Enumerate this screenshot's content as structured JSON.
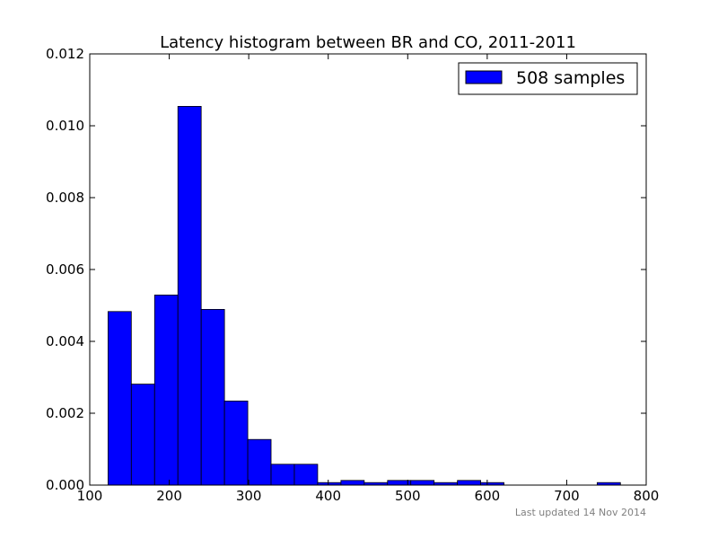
{
  "chart_data": {
    "type": "bar",
    "title": "Latency histogram between BR and CO, 2011-2011",
    "xlabel": "",
    "ylabel": "",
    "xlim": [
      100,
      800
    ],
    "ylim": [
      0,
      0.012
    ],
    "x_ticks": [
      "100",
      "200",
      "300",
      "400",
      "500",
      "600",
      "700",
      "800"
    ],
    "y_ticks": [
      "0.000",
      "0.002",
      "0.004",
      "0.006",
      "0.008",
      "0.010",
      "0.012"
    ],
    "grid": false,
    "legend_position": "top-right",
    "bar_color": "#0000ff",
    "bar_edge_color": "#000000",
    "series": [
      {
        "name": "508 samples",
        "bins": [
          {
            "start": 123,
            "end": 152.3,
            "value": 0.00483
          },
          {
            "start": 152.3,
            "end": 181.6,
            "value": 0.00281
          },
          {
            "start": 181.6,
            "end": 210.9,
            "value": 0.00529
          },
          {
            "start": 210.9,
            "end": 240.2,
            "value": 0.01054
          },
          {
            "start": 240.2,
            "end": 269.5,
            "value": 0.00489
          },
          {
            "start": 269.5,
            "end": 298.8,
            "value": 0.00234
          },
          {
            "start": 298.8,
            "end": 328.1,
            "value": 0.00127
          },
          {
            "start": 328.1,
            "end": 357.4,
            "value": 0.00058
          },
          {
            "start": 357.4,
            "end": 386.7,
            "value": 0.00058
          },
          {
            "start": 386.7,
            "end": 416.0,
            "value": 7e-05
          },
          {
            "start": 416.0,
            "end": 445.3,
            "value": 0.00013
          },
          {
            "start": 445.3,
            "end": 474.6,
            "value": 7e-05
          },
          {
            "start": 474.6,
            "end": 503.9,
            "value": 0.00013
          },
          {
            "start": 503.9,
            "end": 533.2,
            "value": 0.00013
          },
          {
            "start": 533.2,
            "end": 562.5,
            "value": 7e-05
          },
          {
            "start": 562.5,
            "end": 591.8,
            "value": 0.00013
          },
          {
            "start": 591.8,
            "end": 621.1,
            "value": 7e-05
          },
          {
            "start": 621.1,
            "end": 650.4,
            "value": 0
          },
          {
            "start": 650.4,
            "end": 679.7,
            "value": 0
          },
          {
            "start": 679.7,
            "end": 709.0,
            "value": 0
          },
          {
            "start": 709.0,
            "end": 738.3,
            "value": 0
          },
          {
            "start": 738.3,
            "end": 767.6,
            "value": 7e-05
          }
        ]
      }
    ]
  },
  "footer": {
    "note": "Last updated 14 Nov 2014"
  }
}
